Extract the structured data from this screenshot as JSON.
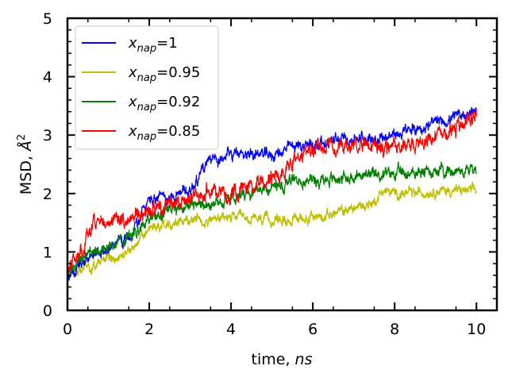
{
  "chart_data": {
    "type": "line",
    "xlabel": "time, ns",
    "xlabel_parts": {
      "main": "time, ",
      "italic": "ns"
    },
    "ylabel": "MSD, Å²",
    "ylabel_parts": {
      "main": "MSD, ",
      "italic": "Å",
      "sup": "2"
    },
    "xlim": [
      0,
      10.5
    ],
    "ylim": [
      0,
      5
    ],
    "x_ticks": [
      0,
      2,
      4,
      6,
      8,
      10
    ],
    "y_ticks": [
      0,
      1,
      2,
      3,
      4,
      5
    ],
    "x_tick_labels": [
      "0",
      "2",
      "4",
      "6",
      "8",
      "10"
    ],
    "y_tick_labels": [
      "0",
      "1",
      "2",
      "3",
      "4",
      "5"
    ],
    "grid": false,
    "legend_position": "top-left",
    "series": [
      {
        "name": "x_nap=1",
        "legend": {
          "var": "x",
          "sub": "nap",
          "value": "=1"
        },
        "color": "#0000ff",
        "x": [
          0,
          0.5,
          1.0,
          1.5,
          2.0,
          2.5,
          3.0,
          3.3,
          3.6,
          4.0,
          4.5,
          5.0,
          5.5,
          6.0,
          6.5,
          7.0,
          7.5,
          8.0,
          8.5,
          9.0,
          9.5,
          10.0
        ],
        "values": [
          0.55,
          0.9,
          1.05,
          1.25,
          1.9,
          1.95,
          2.05,
          2.4,
          2.6,
          2.65,
          2.7,
          2.65,
          2.8,
          2.85,
          2.9,
          2.95,
          2.95,
          3.0,
          3.1,
          3.2,
          3.3,
          3.45
        ],
        "noise": 0.07
      },
      {
        "name": "x_nap=0.95",
        "legend": {
          "var": "x",
          "sub": "nap",
          "value": "=0.95"
        },
        "color": "#bfbf00",
        "x": [
          0,
          0.5,
          1.0,
          1.5,
          2.0,
          2.5,
          3.0,
          3.5,
          4.0,
          4.5,
          5.0,
          5.5,
          6.0,
          6.5,
          7.0,
          7.5,
          7.7,
          8.0,
          8.5,
          9.0,
          9.5,
          10.0
        ],
        "values": [
          0.65,
          0.75,
          0.9,
          1.0,
          1.4,
          1.5,
          1.55,
          1.55,
          1.6,
          1.55,
          1.55,
          1.55,
          1.6,
          1.65,
          1.75,
          1.85,
          2.05,
          2.0,
          2.0,
          2.05,
          2.05,
          2.05
        ],
        "noise": 0.06
      },
      {
        "name": "x_nap=0.92",
        "legend": {
          "var": "x",
          "sub": "nap",
          "value": "=0.92"
        },
        "color": "#008000",
        "x": [
          0,
          0.5,
          1.0,
          1.5,
          2.0,
          2.5,
          3.0,
          3.5,
          4.0,
          4.5,
          5.0,
          5.5,
          6.0,
          6.5,
          7.0,
          7.5,
          8.0,
          8.5,
          9.0,
          9.5,
          10.0
        ],
        "values": [
          0.65,
          0.95,
          1.1,
          1.25,
          1.55,
          1.7,
          1.8,
          1.85,
          1.95,
          2.0,
          2.1,
          2.2,
          2.25,
          2.25,
          2.3,
          2.3,
          2.35,
          2.35,
          2.4,
          2.4,
          2.4
        ],
        "noise": 0.07
      },
      {
        "name": "x_nap=0.85",
        "legend": {
          "var": "x",
          "sub": "nap",
          "value": "=0.85"
        },
        "color": "#ff0000",
        "x": [
          0,
          0.3,
          0.6,
          1.0,
          1.5,
          2.0,
          2.5,
          3.0,
          3.5,
          4.0,
          4.5,
          5.0,
          5.5,
          6.0,
          6.5,
          7.0,
          7.5,
          8.0,
          8.5,
          9.0,
          9.5,
          10.0
        ],
        "values": [
          0.75,
          1.0,
          1.45,
          1.55,
          1.6,
          1.65,
          1.8,
          1.95,
          2.05,
          2.0,
          2.1,
          2.25,
          2.55,
          2.75,
          2.85,
          2.85,
          2.8,
          2.8,
          2.85,
          2.95,
          3.1,
          3.3
        ],
        "noise": 0.09
      }
    ]
  }
}
